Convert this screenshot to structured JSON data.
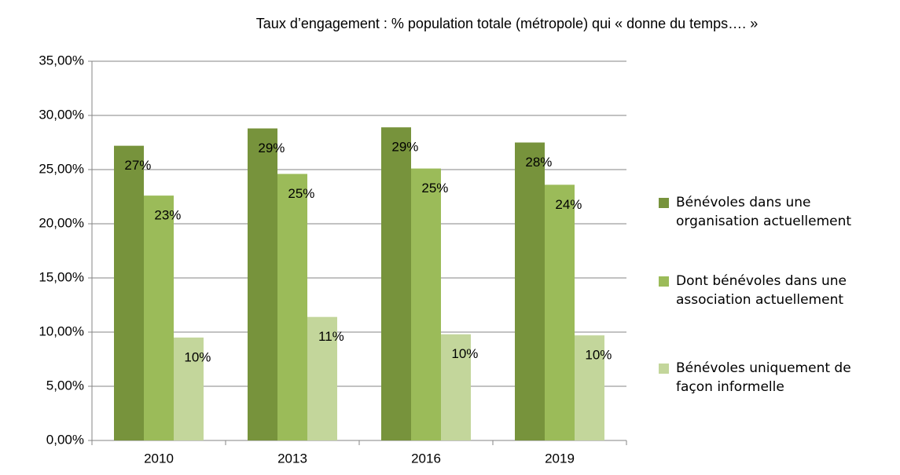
{
  "chart_data": {
    "type": "bar",
    "title": "Taux d’engagement : % population totale (métropole) qui « donne du temps…. »",
    "categories": [
      "2010",
      "2013",
      "2016",
      "2019"
    ],
    "series": [
      {
        "name": "Bénévoles dans une organisation actuellement",
        "color": "#77933c",
        "values": [
          27.2,
          28.8,
          28.9,
          27.5
        ],
        "value_labels": [
          "27%",
          "29%",
          "29%",
          "28%"
        ]
      },
      {
        "name": "Dont bénévoles dans une association actuellement",
        "color": "#9bbb59",
        "values": [
          22.6,
          24.6,
          25.1,
          23.6
        ],
        "value_labels": [
          "23%",
          "25%",
          "25%",
          "24%"
        ]
      },
      {
        "name": "Bénévoles uniquement de façon informelle",
        "color": "#c3d69b",
        "values": [
          9.5,
          11.4,
          9.8,
          9.7
        ],
        "value_labels": [
          "10%",
          "11%",
          "10%",
          "10%"
        ]
      }
    ],
    "ylim": [
      0,
      35
    ],
    "yticks": [
      {
        "value": 0,
        "label": "0,00%"
      },
      {
        "value": 5,
        "label": "5,00%"
      },
      {
        "value": 10,
        "label": "10,00%"
      },
      {
        "value": 15,
        "label": "15,00%"
      },
      {
        "value": 20,
        "label": "20,00%"
      },
      {
        "value": 25,
        "label": "25,00%"
      },
      {
        "value": 30,
        "label": "30,00%"
      },
      {
        "value": 35,
        "label": "35,00%"
      }
    ],
    "grid": true,
    "legend": "right"
  }
}
